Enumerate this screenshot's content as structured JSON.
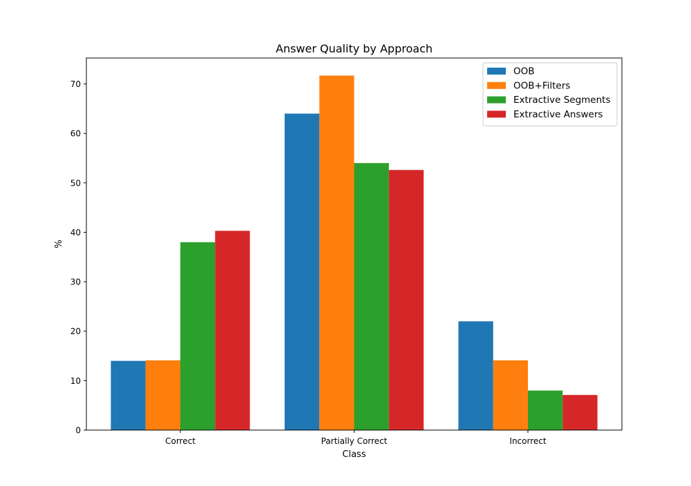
{
  "chart_data": {
    "type": "bar",
    "title": "Answer Quality by Approach",
    "xlabel": "Class",
    "ylabel": "%",
    "categories": [
      "Correct",
      "Partially Correct",
      "Incorrect"
    ],
    "series": [
      {
        "name": "OOB",
        "color": "#1f77b4",
        "values": [
          14.0,
          64.0,
          22.0
        ]
      },
      {
        "name": "OOB+Filters",
        "color": "#ff7f0e",
        "values": [
          14.1,
          71.7,
          14.1
        ]
      },
      {
        "name": "Extractive Segments",
        "color": "#2ca02c",
        "values": [
          38.0,
          54.0,
          8.0
        ]
      },
      {
        "name": "Extractive Answers",
        "color": "#d62728",
        "values": [
          40.3,
          52.6,
          7.1
        ]
      }
    ],
    "ylim": [
      0,
      75.25
    ],
    "yticks": [
      "0",
      "10",
      "20",
      "30",
      "40",
      "50",
      "60",
      "70"
    ],
    "grid": false,
    "legend_position": "top-right"
  }
}
